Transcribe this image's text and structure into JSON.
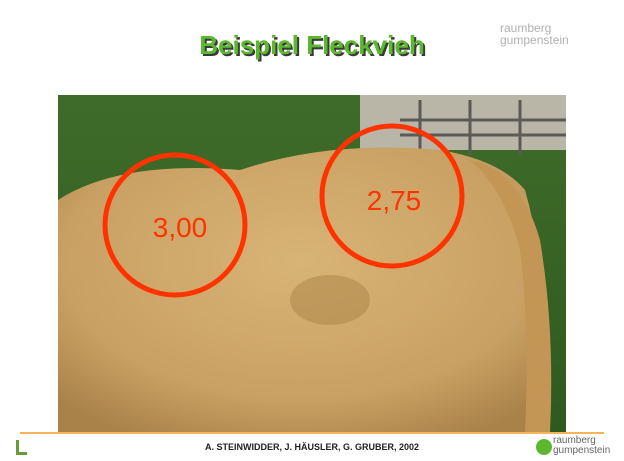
{
  "header": {
    "title": "Beispiel Fleckvieh",
    "logo": [
      "raumberg",
      "gumpenstein"
    ]
  },
  "photo": {
    "labels": [
      "3,00",
      "2,75"
    ]
  },
  "footer": {
    "text": "A. STEINWIDDER, J. HÄUSLER, G. GRUBER, 2002",
    "logo": [
      "raumberg",
      "gumpenstein"
    ]
  }
}
